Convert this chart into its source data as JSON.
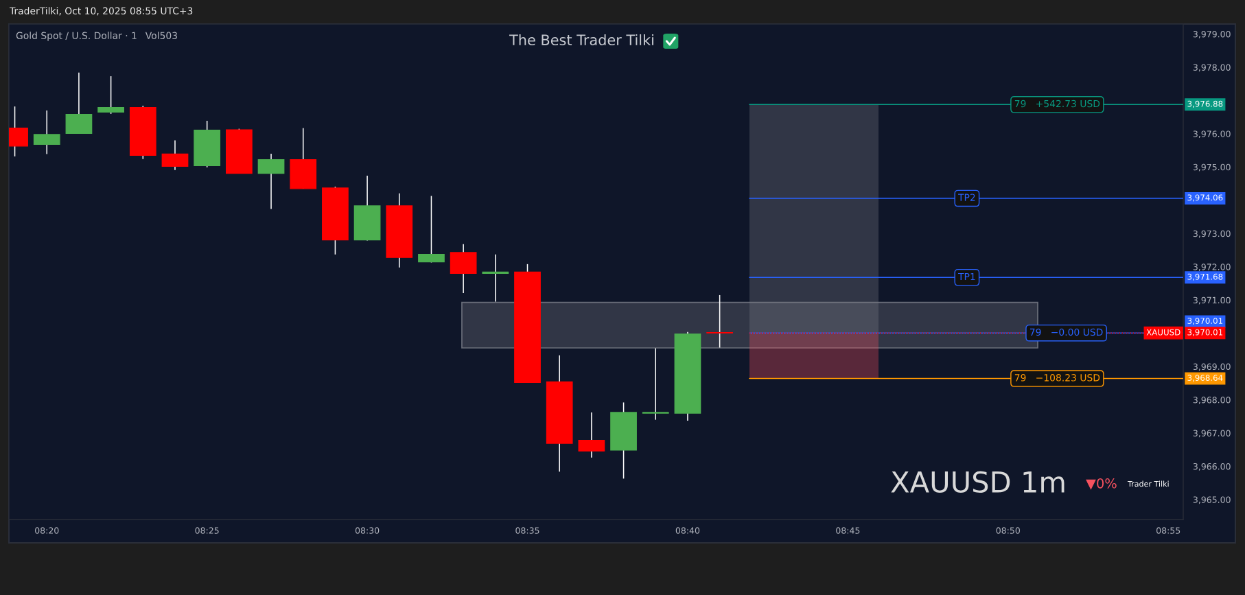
{
  "chart_data": {
    "type": "candlestick",
    "title": "Gold Spot / U.S. Dollar · 1",
    "subtitle": "Vol503",
    "x": [
      "2025-10-10T08:19",
      "2025-10-10T08:20",
      "2025-10-10T08:21",
      "2025-10-10T08:22",
      "2025-10-10T08:23",
      "2025-10-10T08:24",
      "2025-10-10T08:25",
      "2025-10-10T08:26",
      "2025-10-10T08:27",
      "2025-10-10T08:28",
      "2025-10-10T08:29",
      "2025-10-10T08:30",
      "2025-10-10T08:31",
      "2025-10-10T08:32",
      "2025-10-10T08:33",
      "2025-10-10T08:34",
      "2025-10-10T08:35",
      "2025-10-10T08:36",
      "2025-10-10T08:37",
      "2025-10-10T08:38",
      "2025-10-10T08:39",
      "2025-10-10T08:40",
      "2025-10-10T08:41"
    ],
    "ohlc": [
      [
        3976.17,
        3976.82,
        3975.32,
        3975.63
      ],
      [
        3975.68,
        3976.7,
        3975.39,
        3975.98
      ],
      [
        3976.01,
        3977.84,
        3976.01,
        3976.58
      ],
      [
        3976.65,
        3977.73,
        3976.6,
        3976.79
      ],
      [
        3976.79,
        3976.84,
        3975.24,
        3975.35
      ],
      [
        3975.39,
        3975.8,
        3974.91,
        3975.02
      ],
      [
        3975.04,
        3976.39,
        3974.99,
        3976.11
      ],
      [
        3976.12,
        3976.15,
        3974.81,
        3974.81
      ],
      [
        3974.81,
        3975.4,
        3973.74,
        3975.22
      ],
      [
        3975.22,
        3976.17,
        3974.35,
        3974.35
      ],
      [
        3974.37,
        3974.41,
        3972.37,
        3972.81
      ],
      [
        3972.81,
        3974.74,
        3972.79,
        3973.83
      ],
      [
        3973.83,
        3974.21,
        3971.98,
        3972.28
      ],
      [
        3972.15,
        3974.13,
        3972.13,
        3972.37
      ],
      [
        3972.43,
        3972.68,
        3971.21,
        3971.8
      ],
      [
        3971.8,
        3972.37,
        3970.95,
        3971.84
      ],
      [
        3971.84,
        3972.08,
        3968.52,
        3968.52
      ],
      [
        3968.54,
        3969.34,
        3965.84,
        3966.69
      ],
      [
        3966.78,
        3967.62,
        3966.26,
        3966.46
      ],
      [
        3966.49,
        3967.92,
        3965.63,
        3967.62
      ],
      [
        3967.6,
        3969.55,
        3967.4,
        3967.62
      ],
      [
        3967.6,
        3970.04,
        3967.37,
        3969.98
      ],
      [
        3970.02,
        3971.15,
        3969.57,
        3970.01
      ]
    ],
    "colors": [
      "#ff0000",
      "#4caf50",
      "#4caf50",
      "#4caf50",
      "#ff0000",
      "#ff0000",
      "#4caf50",
      "#ff0000",
      "#4caf50",
      "#ff0000",
      "#ff0000",
      "#4caf50",
      "#ff0000",
      "#4caf50",
      "#ff0000",
      "#4caf50",
      "#ff0000",
      "#ff0000",
      "#ff0000",
      "#4caf50",
      "#4caf50",
      "#4caf50",
      "#ff0000"
    ],
    "xlim": [
      "2025-10-10T08:18:49",
      "2025-10-10T08:55:28"
    ],
    "xticks": [
      {
        "value": "2025-10-10T08:20",
        "label": "08:20"
      },
      {
        "value": "2025-10-10T08:25",
        "label": "08:25"
      },
      {
        "value": "2025-10-10T08:30",
        "label": "08:30"
      },
      {
        "value": "2025-10-10T08:35",
        "label": "08:35"
      },
      {
        "value": "2025-10-10T08:40",
        "label": "08:40"
      },
      {
        "value": "2025-10-10T08:45",
        "label": "08:45"
      },
      {
        "value": "2025-10-10T08:50",
        "label": "08:50"
      },
      {
        "value": "2025-10-10T08:55",
        "label": "08:55"
      }
    ],
    "ylim": [
      3964.4,
      3979.3
    ],
    "yticks": [
      {
        "value": 3965,
        "label": "3,965.00"
      },
      {
        "value": 3966,
        "label": "3,966.00"
      },
      {
        "value": 3967,
        "label": "3,967.00"
      },
      {
        "value": 3968,
        "label": "3,968.00"
      },
      {
        "value": 3969,
        "label": "3,969.00"
      },
      {
        "value": 3971,
        "label": "3,971.00"
      },
      {
        "value": 3972,
        "label": "3,972.00"
      },
      {
        "value": 3973,
        "label": "3,973.00"
      },
      {
        "value": 3975,
        "label": "3,975.00"
      },
      {
        "value": 3976,
        "label": "3,976.00"
      },
      {
        "value": 3978,
        "label": "3,978.00"
      },
      {
        "value": 3979,
        "label": "3,979.00"
      }
    ],
    "bands": [
      {
        "axis": "y",
        "from": 3969.56,
        "to": 3970.93,
        "color": "#787b86"
      },
      {
        "axis": "y",
        "from": 3970.01,
        "to": 3976.88,
        "color": "#787b86"
      },
      {
        "axis": "y",
        "from": 3968.64,
        "to": 3970.01,
        "color": "#f7525f"
      }
    ],
    "ref_lines": [
      {
        "axis": "y",
        "value": 3976.88,
        "label": "3,976.88",
        "color": "#089981"
      },
      {
        "axis": "y",
        "value": 3974.06,
        "label": "3,974.06",
        "color": "#2962ff"
      },
      {
        "axis": "y",
        "value": 3971.68,
        "label": "3,971.68",
        "color": "#2962ff"
      },
      {
        "axis": "y",
        "value": 3970.01,
        "label": "3,970.01",
        "color": "#2962ff"
      },
      {
        "axis": "y",
        "value": 3970.01,
        "label": "3,970.01",
        "color": "#ff0000",
        "line_style": "dotted"
      },
      {
        "axis": "y",
        "value": 3968.64,
        "label": "3,968.64",
        "color": "#ff9800"
      }
    ],
    "annotations": [
      "TraderTilki, Oct 10, 2025 08:55 UTC+3",
      "The Best Trader Tilki",
      {
        "text": "79   +542.73 USD",
        "x": "2025-10-10T08:51:32",
        "y": 3976.88
      },
      {
        "text": "TP2",
        "x": "2025-10-10T08:48:43",
        "y": 3974.06
      },
      {
        "text": "TP1",
        "x": "2025-10-10T08:48:43",
        "y": 3971.68
      },
      {
        "text": "79   −0.00 USD",
        "x": "2025-10-10T08:51:49",
        "y": 3970.01
      },
      {
        "text": "XAUUSD",
        "x": "2025-10-10T08:54:51",
        "y": 3970.01
      },
      {
        "text": "79   −108.23 USD",
        "x": "2025-10-10T08:51:32",
        "y": 3968.64
      },
      "XAUUSD 1m",
      "▼0%",
      "Trader Tilki"
    ]
  }
}
